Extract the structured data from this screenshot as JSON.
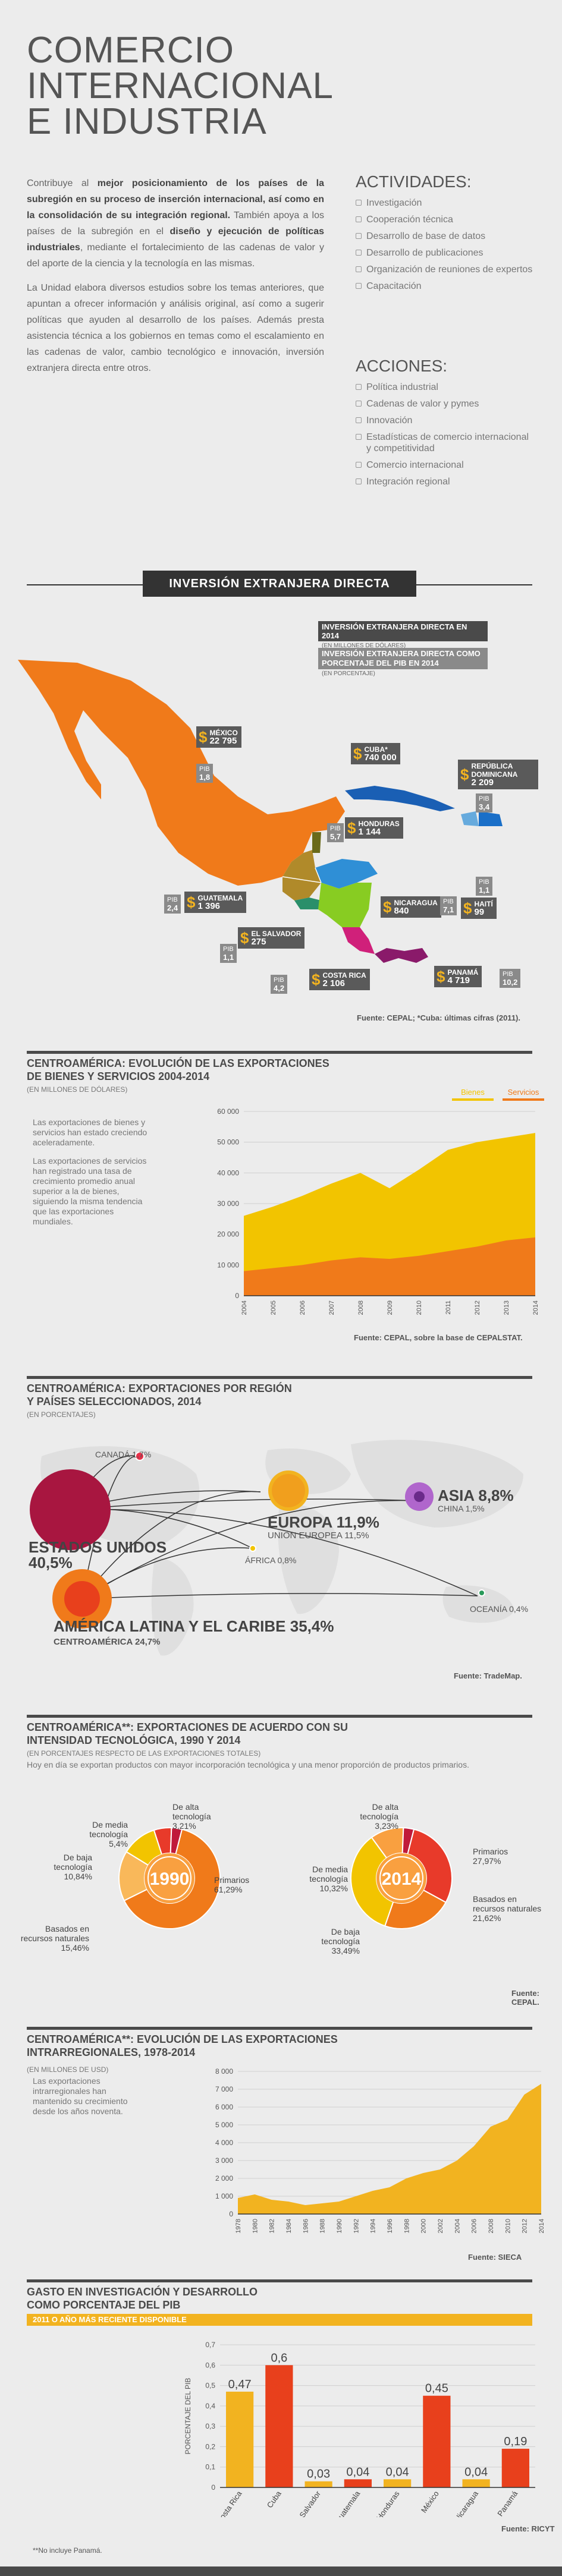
{
  "header": {
    "title_lines": [
      "COMERCIO",
      "INTERNACIONAL",
      "E INDUSTRIA"
    ],
    "intro_p1_a": "Contribuye al ",
    "intro_p1_b": "mejor posicionamiento de los países de la subregión en su proceso de inserción internacional, así como en la consolidación de su integración regional.",
    "intro_p1_c": " También apoya a los países de la subregión en el ",
    "intro_p1_d": "diseño y ejecución de políticas industriales",
    "intro_p1_e": ", mediante el fortalecimiento de las cadenas de valor y del aporte de la ciencia y la tecnología en las mismas.",
    "intro_p2": "La Unidad elabora diversos estudios sobre los temas anteriores, que apuntan a ofrecer información y análisis original, así como a sugerir políticas que ayuden al desarrollo de los países. Además presta asistencia técnica a los gobiernos en temas como el escalamiento en las cadenas de valor, cambio tecnológico e innovación, inversión extranjera directa entre otros.",
    "actividades_title": "ACTIVIDADES:",
    "actividades": [
      "Investigación",
      "Cooperación técnica",
      "Desarrollo de base de datos",
      "Desarrollo de publicaciones",
      "Organización de reuniones de expertos",
      "Capacitación"
    ],
    "acciones_title": "ACCIONES:",
    "acciones": [
      "Política industrial",
      "Cadenas de valor y pymes",
      "Innovación",
      "Estadísticas de comercio internacional y competitividad",
      "Comercio internacional",
      "Integración regional"
    ]
  },
  "ied": {
    "banner": "INVERSIÓN EXTRANJERA DIRECTA",
    "legend1_title": "INVERSIÓN EXTRANJERA DIRECTA EN 2014",
    "legend1_sub": "(EN MILLONES DE DÓLARES)",
    "legend2_title": "INVERSIÓN EXTRANJERA DIRECTA COMO PORCENTAJE DEL PIB EN 2014",
    "legend2_sub": "(EN PORCENTAJE)",
    "pib_label": "PIB",
    "countries": [
      {
        "name": "MÉXICO",
        "value": "22 795",
        "pib": "1,8",
        "color": "#f07a1a"
      },
      {
        "name": "CUBA*",
        "value": "740 000",
        "pib": "",
        "color": "#1a5fb4"
      },
      {
        "name": "REPÚBLICA DOMINICANA",
        "value": "2 209",
        "pib": "3,4",
        "color": "#1a6fc8"
      },
      {
        "name": "HONDURAS",
        "value": "1 144",
        "pib": "5,7",
        "color": "#2f8fd6"
      },
      {
        "name": "HAITÍ",
        "value": "99",
        "pib": "1,1",
        "color": "#66aadd"
      },
      {
        "name": "GUATEMALA",
        "value": "1 396",
        "pib": "2,4",
        "color": "#b08a2a"
      },
      {
        "name": "EL SALVADOR",
        "value": "275",
        "pib": "1,1",
        "color": "#2a8f6a"
      },
      {
        "name": "NICARAGUA",
        "value": "840",
        "pib": "7,1",
        "color": "#88cc22"
      },
      {
        "name": "COSTA RICA",
        "value": "2 106",
        "pib": "4,2",
        "color": "#d0207a"
      },
      {
        "name": "PANAMÁ",
        "value": "4 719",
        "pib": "10,2",
        "color": "#8a1a6a"
      }
    ],
    "source": "Fuente: CEPAL; *Cuba: últimas cifras (2011)."
  },
  "exports": {
    "title": "CENTROAMÉRICA: EVOLUCIÓN DE LAS EXPORTACIONES DE BIENES Y SERVICIOS 2004-2014",
    "subtitle": "(EN MILLONES DE DÓLARES)",
    "text1": "Las exportaciones de bienes y servicios han estado creciendo aceleradamente.",
    "text2": "Las exportaciones de servicios han registrado una tasa de crecimiento promedio anual superior a la de bienes, siguiendo la misma tendencia que las exportaciones mundiales.",
    "source": "Fuente: CEPAL, sobre la base de CEPALSTAT."
  },
  "regions": {
    "title": "CENTROAMÉRICA: EXPORTACIONES POR REGIÓN Y PAÍSES SELECCIONADOS, 2014",
    "subtitle": "(EN PORCENTAJES)",
    "usa": "ESTADOS UNIDOS",
    "usa_val": "40,5%",
    "canada": "CANADÁ 1,7%",
    "europa": "EUROPA 11,9%",
    "ue": "UNIÓN EUROPEA 11,5%",
    "asia": "ASIA 8,8%",
    "china": "CHINA 1,5%",
    "africa": "ÁFRICA 0,8%",
    "oceania": "OCEANÍA 0,4%",
    "latam": "AMÉRICA LATINA Y EL CARIBE 35,4%",
    "ca": "CENTROAMÉRICA 24,7%",
    "source": "Fuente: TradeMap."
  },
  "tech": {
    "title": "CENTROAMÉRICA**: EXPORTACIONES DE ACUERDO CON SU INTENSIDAD TECNOLÓGICA, 1990 Y 2014",
    "subtitle": "(EN PORCENTAJES RESPECTO DE LAS EXPORTACIONES TOTALES)",
    "desc": "Hoy en día se exportan productos con mayor incorporación tecnológica y una menor proporción de productos primarios.",
    "y1990": "1990",
    "y2014": "2014",
    "source": "Fuente: CEPAL."
  },
  "intra": {
    "title": "CENTROAMÉRICA**: EVOLUCIÓN DE LAS EXPORTACIONES INTRARREGIONALES, 1978-2014",
    "subtitle": "(EN MILLONES DE USD)",
    "desc": "Las exportaciones intrarregionales han mantenido su crecimiento desde los años noventa.",
    "source": "Fuente: SIECA"
  },
  "rd": {
    "title": "GASTO EN INVESTIGACIÓN Y DESARROLLO COMO PORCENTAJE DEL PIB",
    "band": "2011 O AÑO MÁS RECIENTE DISPONIBLE",
    "source": "Fuente: RICYT"
  },
  "footnote": "**No incluye Panamá.",
  "colors": {
    "orange": "#f07a1a",
    "yellow": "#f2b320",
    "dark": "#4a4a4a",
    "red": "#e8401c"
  },
  "chart_data": [
    {
      "type": "area",
      "title": "CENTROAMÉRICA: EVOLUCIÓN DE LAS EXPORTACIONES DE BIENES Y SERVICIOS 2004-2014",
      "x": [
        "2004",
        "2005",
        "2006",
        "2007",
        "2008",
        "2009",
        "2010",
        "2011",
        "2012",
        "2013",
        "2014"
      ],
      "series": [
        {
          "name": "Bienes",
          "values": [
            18000,
            20000,
            22500,
            25000,
            27500,
            23000,
            28000,
            33000,
            34000,
            33500,
            34000
          ],
          "color": "#f2c400"
        },
        {
          "name": "Servicios",
          "values": [
            8000,
            9000,
            10000,
            11500,
            12500,
            12000,
            13000,
            14500,
            16000,
            18000,
            19000
          ],
          "color": "#f07a1a"
        }
      ],
      "legend": [
        "Bienes",
        "Servicios"
      ],
      "yticks": [
        "0",
        "10 000",
        "20 000",
        "30 000",
        "40 000",
        "50 000",
        "60 000"
      ],
      "ylim": [
        0,
        60000
      ]
    },
    {
      "type": "pie",
      "title": "1990",
      "slices": [
        {
          "label": "Primarios",
          "value": 61.29,
          "text": "61,29%",
          "color": "#f07a1a"
        },
        {
          "label": "Basados en recursos naturales",
          "value": 15.46,
          "text": "15,46%",
          "color": "#f9b85a"
        },
        {
          "label": "De baja tecnología",
          "value": 10.84,
          "text": "10,84%",
          "color": "#f2c400"
        },
        {
          "label": "De media tecnología",
          "value": 5.4,
          "text": "5,4%",
          "color": "#e83a2a"
        },
        {
          "label": "De alta tecnología",
          "value": 3.21,
          "text": "3,21%",
          "color": "#c01a3a"
        }
      ]
    },
    {
      "type": "pie",
      "title": "2014",
      "slices": [
        {
          "label": "Primarios",
          "value": 27.97,
          "text": "27,97%",
          "color": "#e83a2a"
        },
        {
          "label": "Basados en recursos naturales",
          "value": 21.62,
          "text": "21,62%",
          "color": "#f07a1a"
        },
        {
          "label": "De baja tecnología",
          "value": 33.49,
          "text": "33,49%",
          "color": "#f2c400"
        },
        {
          "label": "De media tecnología",
          "value": 10.32,
          "text": "10,32%",
          "color": "#f9a040"
        },
        {
          "label": "De alta tecnología",
          "value": 3.23,
          "text": "3,23%",
          "color": "#c01a3a"
        }
      ]
    },
    {
      "type": "area",
      "title": "CENTROAMÉRICA**: EVOLUCIÓN DE LAS EXPORTACIONES INTRARREGIONALES, 1978-2014",
      "x": [
        "1978",
        "1980",
        "1982",
        "1984",
        "1986",
        "1988",
        "1990",
        "1992",
        "1994",
        "1996",
        "1998",
        "2000",
        "2002",
        "2004",
        "2006",
        "2008",
        "2010",
        "2012",
        "2014"
      ],
      "series": [
        {
          "name": "Exportaciones intrarregionales",
          "values": [
            900,
            1100,
            800,
            700,
            500,
            600,
            700,
            1000,
            1300,
            1500,
            2000,
            2300,
            2500,
            3000,
            3800,
            4900,
            5300,
            6700,
            7300
          ],
          "color": "#f2b320"
        }
      ],
      "yticks": [
        "0",
        "1 000",
        "2 000",
        "3 000",
        "4 000",
        "5 000",
        "6 000",
        "7 000",
        "8 000"
      ],
      "ylim": [
        0,
        8000
      ]
    },
    {
      "type": "bar",
      "title": "GASTO EN INVESTIGACIÓN Y DESARROLLO COMO PORCENTAJE DEL PIB",
      "ylabel": "PORCENTAJE DEL PIB",
      "categories": [
        "Costa Rica",
        "Cuba",
        "El Salvador",
        "Guatemala",
        "Honduras",
        "México",
        "Nicaragua",
        "Panamá"
      ],
      "values": [
        0.47,
        0.6,
        0.03,
        0.04,
        0.04,
        0.45,
        0.04,
        0.19
      ],
      "labels": [
        "0,47",
        "0,6",
        "0,03",
        "0,04",
        "0,04",
        "0,45",
        "0,04",
        "0,19"
      ],
      "colors": [
        "#f2b320",
        "#e8401c",
        "#f2b320",
        "#e8401c",
        "#f2b320",
        "#e8401c",
        "#f2b320",
        "#e8401c"
      ],
      "yticks": [
        "0",
        "0,1",
        "0,2",
        "0,3",
        "0,4",
        "0,5",
        "0,6",
        "0,7"
      ],
      "ylim": [
        0,
        0.7
      ]
    }
  ]
}
